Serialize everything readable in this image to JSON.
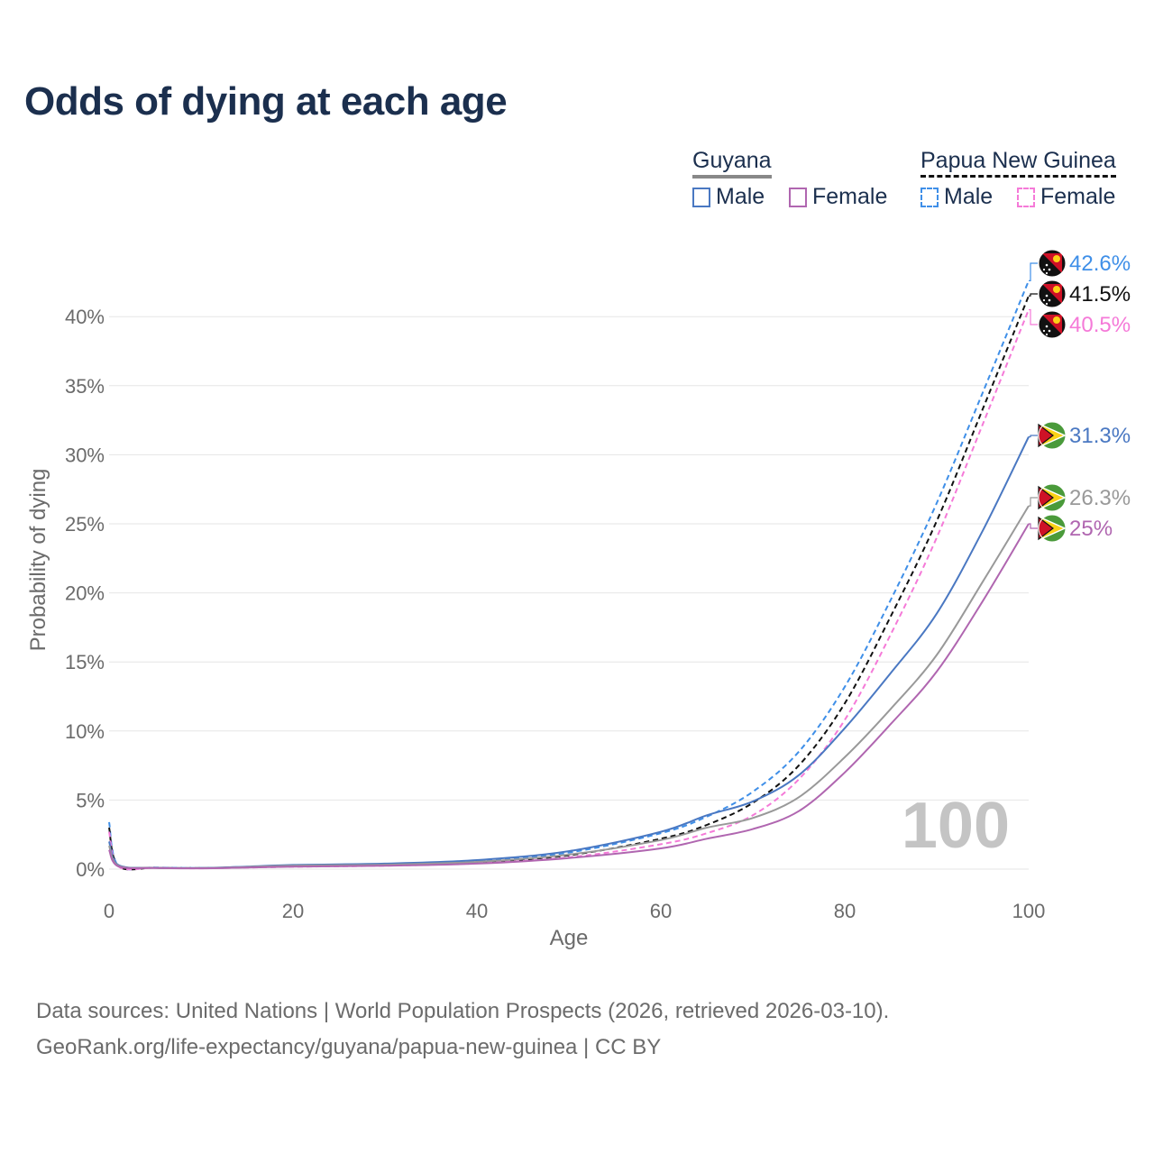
{
  "title": "Odds of dying at each age",
  "legend": {
    "groups": [
      {
        "name": "Guyana",
        "color": "#888888",
        "dashed": false
      },
      {
        "name": "Papua New Guinea",
        "color": "#111111",
        "dashed": true
      }
    ],
    "items": [
      {
        "label": "Male",
        "color": "#4a78c2",
        "dashed": false
      },
      {
        "label": "Female",
        "color": "#b066b0",
        "dashed": false
      },
      {
        "label": "Male",
        "color": "#3f8fe8",
        "dashed": true
      },
      {
        "label": "Female",
        "color": "#f57ad8",
        "dashed": true
      }
    ]
  },
  "watermark": "100",
  "footer": {
    "line1": "Data sources: United Nations | World Population Prospects (2026, retrieved 2026-03-10).",
    "line2": "GeoRank.org/life-expectancy/guyana/papua-new-guinea | CC BY"
  },
  "chart_data": {
    "type": "line",
    "title": "Odds of dying at each age",
    "xlabel": "Age",
    "ylabel": "Probability of dying",
    "xlim": [
      0,
      100
    ],
    "ylim": [
      0,
      42
    ],
    "xticks": [
      0,
      20,
      40,
      60,
      80,
      100
    ],
    "xtick_labels": [
      "0",
      "20",
      "40",
      "60",
      "80",
      "100"
    ],
    "yticks": [
      0,
      5,
      10,
      15,
      20,
      25,
      30,
      35,
      40
    ],
    "ytick_labels": [
      "0%",
      "5%",
      "10%",
      "15%",
      "20%",
      "25%",
      "30%",
      "35%",
      "40%"
    ],
    "grid": true,
    "x": [
      0,
      1,
      5,
      10,
      15,
      20,
      30,
      40,
      50,
      60,
      65,
      70,
      75,
      80,
      85,
      90,
      95,
      100
    ],
    "series": [
      {
        "name": "Papua New Guinea Male",
        "country": "Papua New Guinea",
        "sex": "Male",
        "color": "#3f8fe8",
        "dashed": true,
        "end_label": "42.6%",
        "values": [
          3.4,
          0.25,
          0.12,
          0.08,
          0.15,
          0.25,
          0.35,
          0.6,
          1.2,
          2.6,
          3.8,
          5.6,
          8.5,
          13.2,
          19.5,
          26.5,
          34.5,
          42.6
        ]
      },
      {
        "name": "Both sexes",
        "country": "Papua New Guinea",
        "sex": "Total",
        "color": "#111111",
        "dashed": true,
        "end_label": "41.5%",
        "values": [
          3.0,
          0.22,
          0.1,
          0.07,
          0.13,
          0.2,
          0.3,
          0.5,
          1.0,
          2.2,
          3.2,
          4.8,
          7.5,
          12.0,
          18.3,
          25.2,
          33.3,
          41.5
        ]
      },
      {
        "name": "Papua New Guinea Female",
        "country": "Papua New Guinea",
        "sex": "Female",
        "color": "#f57ad8",
        "dashed": true,
        "end_label": "40.5%",
        "values": [
          2.7,
          0.2,
          0.09,
          0.06,
          0.11,
          0.17,
          0.25,
          0.42,
          0.85,
          1.8,
          2.6,
          3.9,
          6.5,
          10.8,
          17.0,
          24.0,
          32.2,
          40.5
        ]
      },
      {
        "name": "Guyana Male",
        "country": "Guyana",
        "sex": "Male",
        "color": "#4a78c2",
        "dashed": false,
        "end_label": "31.3%",
        "values": [
          2.0,
          0.3,
          0.1,
          0.08,
          0.18,
          0.3,
          0.4,
          0.65,
          1.3,
          2.7,
          3.9,
          4.9,
          6.8,
          10.2,
          14.2,
          18.5,
          24.5,
          31.3
        ]
      },
      {
        "name": "Both sexes",
        "country": "Guyana",
        "sex": "Total",
        "color": "#999999",
        "dashed": false,
        "end_label": "26.3%",
        "values": [
          1.7,
          0.25,
          0.09,
          0.07,
          0.15,
          0.25,
          0.32,
          0.52,
          1.05,
          2.1,
          3.0,
          3.7,
          5.2,
          8.1,
          11.6,
          15.5,
          20.8,
          26.3
        ]
      },
      {
        "name": "Guyana Female",
        "country": "Guyana",
        "sex": "Female",
        "color": "#b066b0",
        "dashed": false,
        "end_label": "25%",
        "values": [
          1.4,
          0.2,
          0.08,
          0.06,
          0.12,
          0.18,
          0.25,
          0.4,
          0.8,
          1.5,
          2.2,
          2.9,
          4.2,
          7.0,
          10.5,
          14.3,
          19.4,
          25.0
        ]
      }
    ]
  }
}
